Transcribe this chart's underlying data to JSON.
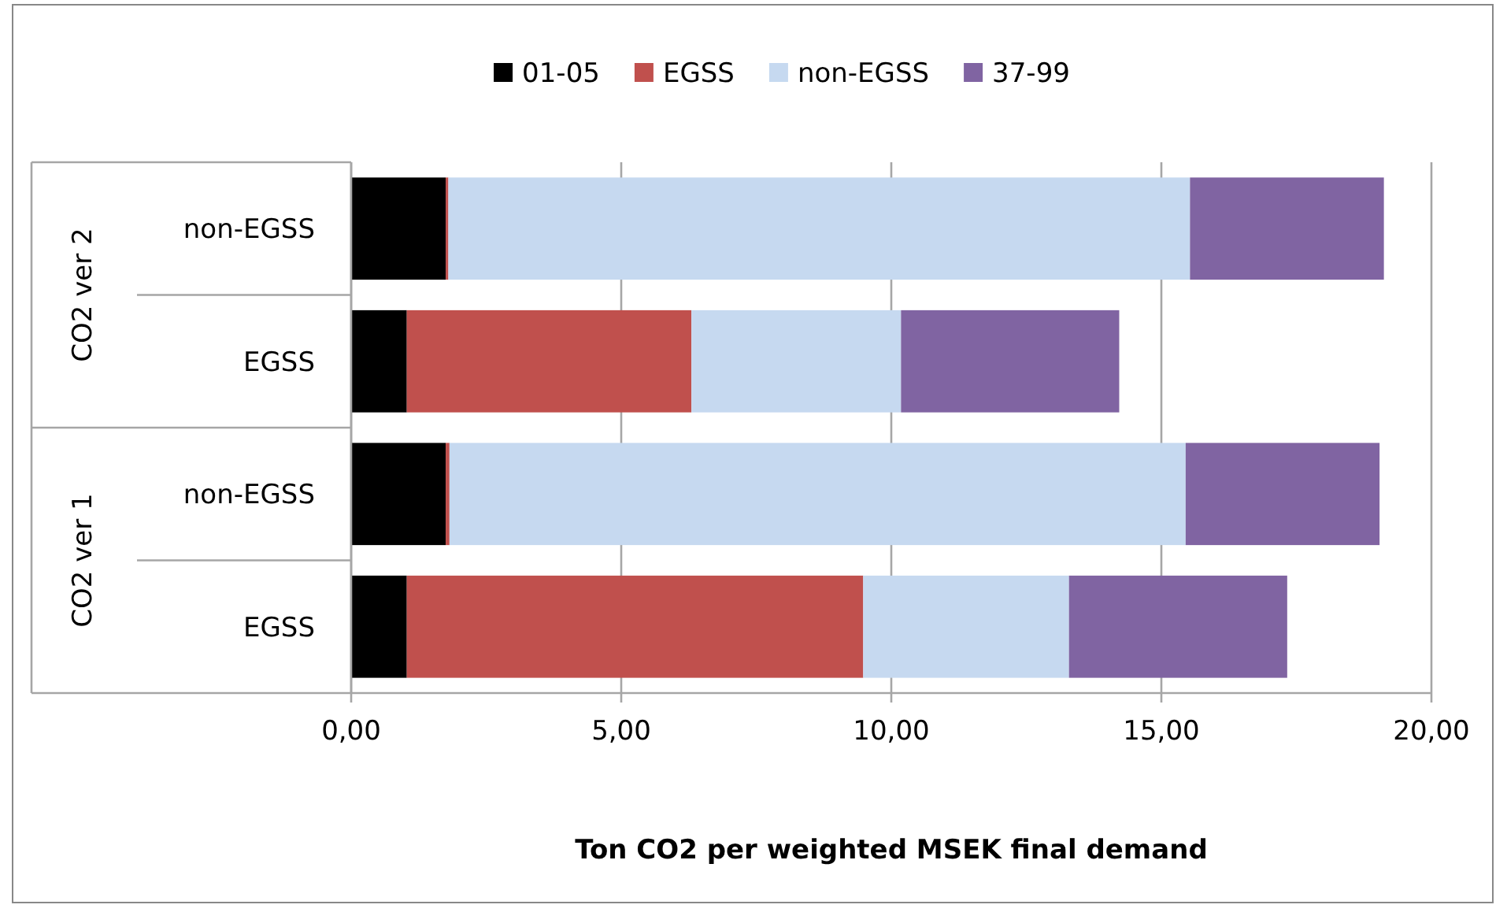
{
  "chart_data": {
    "type": "bar",
    "orientation": "horizontal",
    "stacked": true,
    "xlabel": "Ton CO2 per weighted MSEK final demand",
    "categories": [
      "non-EGSS",
      "EGSS",
      "non-EGSS",
      "EGSS"
    ],
    "annotations": [
      "CO2 ver 2",
      "CO2 ver 1"
    ],
    "series": [
      {
        "name": "01-05",
        "color": "#000000",
        "values": [
          1.75,
          1.03,
          1.75,
          1.03
        ]
      },
      {
        "name": "EGSS",
        "color": "#c0504d",
        "values": [
          0.05,
          5.27,
          0.07,
          8.45
        ]
      },
      {
        "name": "non-EGSS",
        "color": "#c6d9f0",
        "values": [
          13.73,
          3.88,
          13.63,
          3.81
        ]
      },
      {
        "name": "37-99",
        "color": "#8064a2",
        "values": [
          3.59,
          4.04,
          3.59,
          4.04
        ]
      }
    ],
    "xlim": [
      0,
      20
    ],
    "xticks": [
      {
        "value": 0,
        "label": "0,00"
      },
      {
        "value": 5,
        "label": "5,00"
      },
      {
        "value": 10,
        "label": "10,00"
      },
      {
        "value": 15,
        "label": "15,00"
      },
      {
        "value": 20,
        "label": "20,00"
      }
    ],
    "grid": "x",
    "legend": "top"
  }
}
